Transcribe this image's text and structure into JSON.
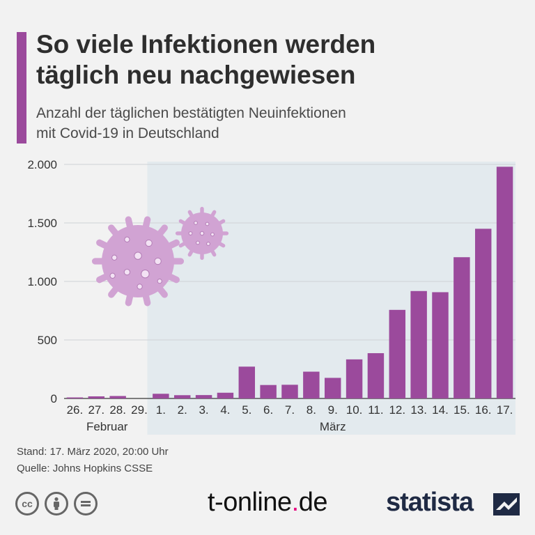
{
  "header": {
    "title_line1": "So viele Infektionen werden",
    "title_line2": "täglich neu nachgewiesen",
    "subtitle_line1": "Anzahl der täglichen bestätigten Neuinfektionen",
    "subtitle_line2": "mit Covid-19 in Deutschland"
  },
  "footer": {
    "stand": "Stand: 17. März 2020, 20:00 Uhr",
    "quelle": "Quelle: Johns Hopkins CSSE",
    "brand_tonline_pre": "t-online",
    "brand_tonline_dot": ".",
    "brand_tonline_post": "de",
    "brand_statista": "statista",
    "cc_icons": [
      "cc-icon",
      "by-icon",
      "equals-icon"
    ]
  },
  "colors": {
    "bar": "#9b4a9c",
    "march_background": "#e3eaee",
    "virus": "#d1a3d3",
    "virus_dots": "#f3e2f4"
  },
  "chart_data": {
    "type": "bar",
    "categories": [
      "26.",
      "27.",
      "28.",
      "29.",
      "1.",
      "2.",
      "3.",
      "4.",
      "5.",
      "6.",
      "7.",
      "8.",
      "9.",
      "10.",
      "11.",
      "12.",
      "13.",
      "14.",
      "15.",
      "16.",
      "17."
    ],
    "values": [
      5,
      18,
      21,
      0,
      40,
      28,
      29,
      49,
      272,
      115,
      117,
      229,
      176,
      334,
      387,
      757,
      918,
      908,
      1207,
      1450,
      1980
    ],
    "month_groups": [
      {
        "label": "Februar",
        "start": 0,
        "end": 3
      },
      {
        "label": "März",
        "start": 4,
        "end": 20
      }
    ],
    "ylim": [
      0,
      2000
    ],
    "y_ticks": [
      0,
      500,
      1000,
      1500,
      2000
    ],
    "y_tick_labels": [
      "0",
      "500",
      "1.000",
      "1.500",
      "2.000"
    ],
    "grid": true,
    "title": "",
    "xlabel": "",
    "ylabel": ""
  }
}
